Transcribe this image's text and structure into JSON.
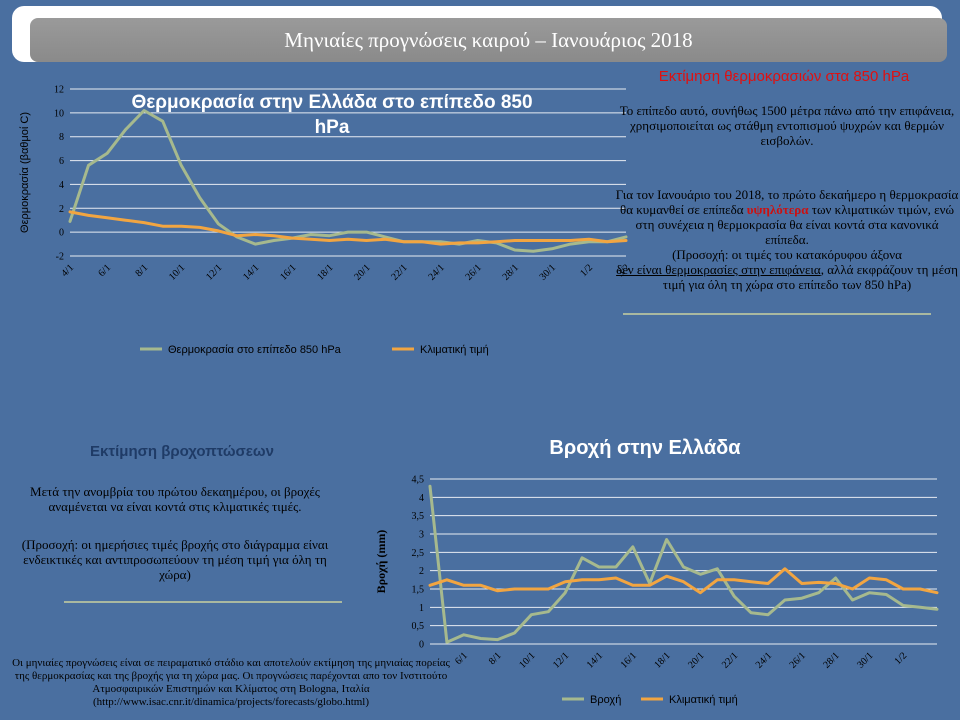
{
  "banner": {
    "title": "Μηνιαίες προγνώσεις καιρού – Ιανουάριος 2018"
  },
  "temp_panel": {
    "heading": "Εκτίμηση θερμοκρασιών στα 850 hPa",
    "para1": "Το επίπεδο αυτό, συνήθως 1500 μέτρα πάνω από την επιφάνεια, χρησιμοποιείται ως στάθμη  εντοπισμού ψυχρών και θερμών εισβολών.",
    "para2_a": "Για τον Ιανουάριο του 2018, το πρώτο δεκαήμερο η θερμοκρασία θα κυμανθεί σε επίπεδα",
    "para2_hl": "υψηλότερα",
    "para2_b": "των κλιματικών τιμών, ενώ στη συνέχεια η θερμοκρασία θα είναι κοντά στα κανονικά επίπεδα.",
    "para2_c": "(Προσοχή: οι τιμές του  κατακόρυφου άξονα",
    "para2_u": "δεν είναι θερμοκρασίες στην επιφάνεια",
    "para2_d": ", αλλά εκφράζουν τη μέση τιμή για όλη τη χώρα στο επίπεδο των 850 hPa)"
  },
  "rain_panel": {
    "heading": "Εκτίμηση βροχοπτώσεων",
    "para1": "Μετά την ανομβρία του πρώτου δεκαημέρου, οι βροχές αναμένεται να είναι κοντά στις κλιματικές τιμές.",
    "para2": "(Προσοχή: οι ημερήσιες τιμές βροχής στο διάγραμμα είναι ενδεικτικές και  αντιπροσωπεύουν τη μέση τιμή για όλη τη χώρα)"
  },
  "footer": {
    "note": "Οι μηνιαίες προγνώσεις  είναι σε πειραματικό στάδιο και αποτελούν  εκτίμηση της μηνιαίας πορείας της θερμοκρασίας  και της βροχής για τη χώρα μας. Οι προγνώσεις παρέχονται απο τον Ινστιτούτο Ατμοσφαιρικών  Επιστημών και Κλίματος στη Bologna, Ιταλία (http://www.isac.cnr.it/dinamica/projects/forecasts/globo.html)"
  },
  "colors": {
    "series_main": "#a6b98e",
    "series_clim": "#f2a541",
    "gridline": "#e8ecf2"
  },
  "chart_data": [
    {
      "type": "line",
      "title": "Θερμοκρασία στην Ελλάδα στο επίπεδο 850 hPa",
      "ylabel": "Θερμοκρασία  (βαθμοί C)",
      "xlabel": "",
      "ylim": [
        -2,
        12
      ],
      "yticks": [
        -2,
        0,
        2,
        4,
        6,
        8,
        10,
        12
      ],
      "x_tick_labels": [
        "4/1",
        "6/1",
        "8/1",
        "10/1",
        "12/1",
        "14/1",
        "16/1",
        "18/1",
        "20/1",
        "22/1",
        "24/1",
        "26/1",
        "28/1",
        "30/1",
        "1/2",
        "3/2"
      ],
      "x": [
        "4/1",
        "5/1",
        "6/1",
        "7/1",
        "8/1",
        "9/1",
        "10/1",
        "11/1",
        "12/1",
        "13/1",
        "14/1",
        "15/1",
        "16/1",
        "17/1",
        "18/1",
        "19/1",
        "20/1",
        "21/1",
        "22/1",
        "23/1",
        "24/1",
        "25/1",
        "26/1",
        "27/1",
        "28/1",
        "29/1",
        "30/1",
        "31/1",
        "1/2",
        "2/2",
        "3/2"
      ],
      "legend_position": "bottom",
      "grid": true,
      "series": [
        {
          "name": "Θερμοκρασία  στο επίπεδο 850 hPa",
          "values": [
            0.9,
            5.6,
            6.6,
            8.6,
            10.2,
            9.3,
            5.6,
            2.9,
            0.7,
            -0.4,
            -1.0,
            -0.7,
            -0.5,
            -0.2,
            -0.3,
            0.0,
            0.0,
            -0.4,
            -0.8,
            -0.8,
            -0.8,
            -1.0,
            -0.7,
            -0.9,
            -1.5,
            -1.6,
            -1.4,
            -1.0,
            -0.8,
            -0.8,
            -0.4
          ]
        },
        {
          "name": "Κλιματική  τιμή",
          "values": [
            1.7,
            1.4,
            1.2,
            1.0,
            0.8,
            0.5,
            0.5,
            0.4,
            0.1,
            -0.3,
            -0.2,
            -0.3,
            -0.5,
            -0.6,
            -0.7,
            -0.6,
            -0.7,
            -0.6,
            -0.8,
            -0.8,
            -1.0,
            -0.9,
            -0.9,
            -0.8,
            -0.7,
            -0.7,
            -0.7,
            -0.7,
            -0.6,
            -0.8,
            -0.7
          ]
        }
      ]
    },
    {
      "type": "line",
      "title": "Βροχή στην Ελλάδα",
      "ylabel": "Βροχή (mm)",
      "xlabel": "",
      "ylim": [
        0,
        4.5
      ],
      "yticks": [
        "0",
        "0,5",
        "1",
        "1,5",
        "2",
        "2,5",
        "3",
        "3,5",
        "4",
        "4,5"
      ],
      "x_tick_labels": [
        "6/1",
        "8/1",
        "10/1",
        "12/1",
        "14/1",
        "16/1",
        "18/1",
        "20/1",
        "22/1",
        "24/1",
        "26/1",
        "28/1",
        "30/1",
        "1/2"
      ],
      "x": [
        "4/1",
        "5/1",
        "6/1",
        "7/1",
        "8/1",
        "9/1",
        "10/1",
        "11/1",
        "12/1",
        "13/1",
        "14/1",
        "15/1",
        "16/1",
        "17/1",
        "18/1",
        "19/1",
        "20/1",
        "21/1",
        "22/1",
        "23/1",
        "24/1",
        "25/1",
        "26/1",
        "27/1",
        "28/1",
        "29/1",
        "30/1",
        "31/1",
        "1/2",
        "2/2",
        "3/2"
      ],
      "legend_position": "bottom",
      "grid": true,
      "series": [
        {
          "name": "Βροχή",
          "values": [
            4.3,
            0.05,
            0.25,
            0.15,
            0.12,
            0.3,
            0.8,
            0.88,
            1.4,
            2.35,
            2.1,
            2.1,
            2.65,
            1.65,
            2.85,
            2.1,
            1.9,
            2.05,
            1.3,
            0.85,
            0.8,
            1.2,
            1.25,
            1.4,
            1.8,
            1.2,
            1.4,
            1.35,
            1.05,
            1.0,
            0.95
          ]
        },
        {
          "name": "Κλιματική  τιμή",
          "values": [
            1.6,
            1.75,
            1.6,
            1.6,
            1.45,
            1.5,
            1.5,
            1.5,
            1.7,
            1.75,
            1.75,
            1.8,
            1.6,
            1.6,
            1.85,
            1.7,
            1.4,
            1.75,
            1.75,
            1.7,
            1.65,
            2.05,
            1.65,
            1.68,
            1.65,
            1.5,
            1.8,
            1.75,
            1.5,
            1.5,
            1.4
          ]
        }
      ]
    }
  ]
}
